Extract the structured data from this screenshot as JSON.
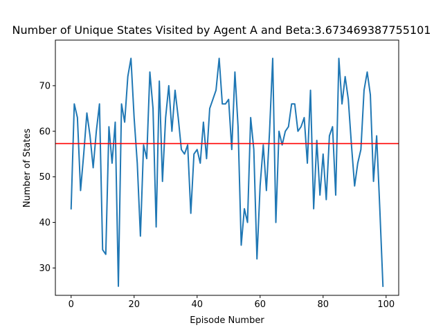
{
  "chart_data": {
    "type": "line",
    "title": "Number of Unique States Visited by Agent A and Beta:3.673469387755101",
    "xlabel": "Episode Number",
    "ylabel": "Number of States",
    "xlim": [
      -5,
      104
    ],
    "ylim": [
      24,
      80
    ],
    "xticks": [
      0,
      20,
      40,
      60,
      80,
      100
    ],
    "yticks": [
      30,
      40,
      50,
      60,
      70
    ],
    "grid": false,
    "series": [
      {
        "color": "#1f77b4",
        "x": [
          0,
          1,
          2,
          3,
          4,
          5,
          6,
          7,
          8,
          9,
          10,
          11,
          12,
          13,
          14,
          15,
          16,
          17,
          18,
          19,
          20,
          21,
          22,
          23,
          24,
          25,
          26,
          27,
          28,
          29,
          30,
          31,
          32,
          33,
          34,
          35,
          36,
          37,
          38,
          39,
          40,
          41,
          42,
          43,
          44,
          45,
          46,
          47,
          48,
          49,
          50,
          51,
          52,
          53,
          54,
          55,
          56,
          57,
          58,
          59,
          60,
          61,
          62,
          63,
          64,
          65,
          66,
          67,
          68,
          69,
          70,
          71,
          72,
          73,
          74,
          75,
          76,
          77,
          78,
          79,
          80,
          81,
          82,
          83,
          84,
          85,
          86,
          87,
          88,
          89,
          90,
          91,
          92,
          93,
          94,
          95,
          96,
          97,
          98,
          99
        ],
        "y": [
          43,
          66,
          63,
          47,
          55,
          64,
          59,
          52,
          60,
          66,
          34,
          33,
          61,
          53,
          62,
          26,
          66,
          62,
          72,
          76,
          63,
          53,
          37,
          57,
          54,
          73,
          65,
          39,
          71,
          49,
          63,
          70,
          60,
          69,
          63,
          56,
          55,
          57,
          42,
          55,
          56,
          53,
          62,
          54,
          65,
          67,
          69,
          76,
          66,
          66,
          67,
          56,
          73,
          61,
          35,
          43,
          40,
          63,
          56,
          32,
          48,
          57,
          47,
          60,
          76,
          40,
          60,
          57,
          60,
          61,
          66,
          66,
          60,
          61,
          63,
          53,
          69,
          43,
          58,
          46,
          55,
          45,
          59,
          61,
          46,
          76,
          66,
          72,
          67,
          57,
          48,
          53,
          56,
          69,
          73,
          68,
          49,
          59,
          43,
          26
        ]
      }
    ],
    "hline": {
      "y": 57.3,
      "color": "#ff0000"
    }
  }
}
